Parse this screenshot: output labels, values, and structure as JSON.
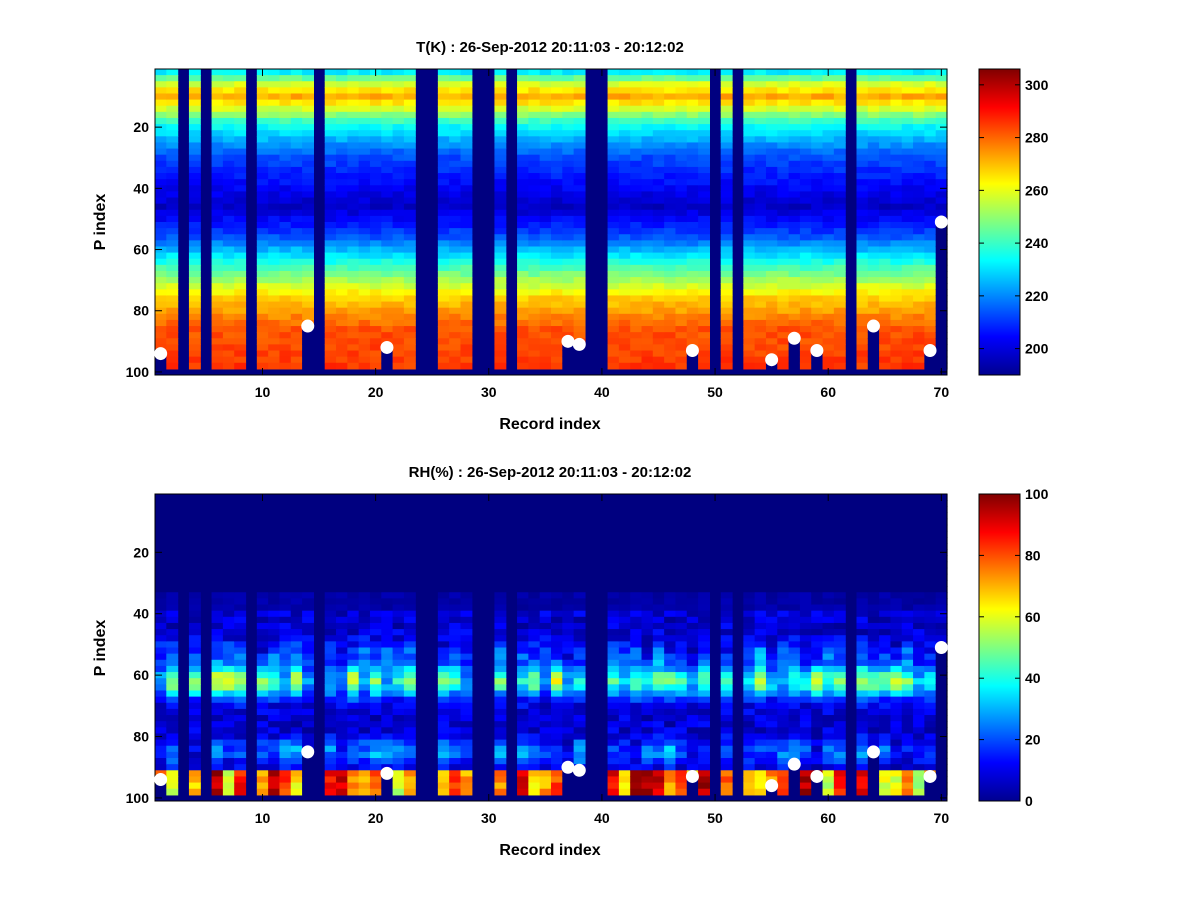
{
  "chart_data": [
    {
      "type": "heatmap",
      "title": "T(K) : 26-Sep-2012 20:11:03 - 20:12:02",
      "xlabel": "Record index",
      "ylabel": "P index",
      "xlim": [
        1,
        70
      ],
      "ylim": [
        101,
        1
      ],
      "x_ticks": [
        10,
        20,
        30,
        40,
        50,
        60,
        70
      ],
      "y_ticks": [
        20,
        40,
        60,
        80,
        100
      ],
      "colormap": "jet",
      "colorbar": {
        "min": 190,
        "max": 306,
        "ticks": [
          200,
          220,
          240,
          260,
          280,
          300
        ]
      },
      "missing_records": [
        3,
        5,
        9,
        15,
        24,
        25,
        29,
        30,
        32,
        39,
        40,
        50,
        52,
        62
      ],
      "surface_markers": [
        {
          "x": 1,
          "y": 94
        },
        {
          "x": 14,
          "y": 85
        },
        {
          "x": 21,
          "y": 92
        },
        {
          "x": 37,
          "y": 90
        },
        {
          "x": 38,
          "y": 91
        },
        {
          "x": 48,
          "y": 93
        },
        {
          "x": 55,
          "y": 96
        },
        {
          "x": 57,
          "y": 89
        },
        {
          "x": 59,
          "y": 93
        },
        {
          "x": 64,
          "y": 85
        },
        {
          "x": 69,
          "y": 93
        },
        {
          "x": 70,
          "y": 51
        }
      ]
    },
    {
      "type": "heatmap",
      "title": "RH(%) : 26-Sep-2012 20:11:03 - 20:12:02",
      "xlabel": "Record index",
      "ylabel": "P index",
      "xlim": [
        1,
        70
      ],
      "ylim": [
        101,
        1
      ],
      "x_ticks": [
        10,
        20,
        30,
        40,
        50,
        60,
        70
      ],
      "y_ticks": [
        20,
        40,
        60,
        80,
        100
      ],
      "colormap": "jet",
      "colorbar": {
        "min": 0,
        "max": 100,
        "ticks": [
          0,
          20,
          40,
          60,
          80,
          100
        ]
      },
      "missing_records": [
        3,
        5,
        9,
        15,
        24,
        25,
        29,
        30,
        32,
        39,
        40,
        50,
        52,
        62
      ],
      "surface_markers": [
        {
          "x": 1,
          "y": 94
        },
        {
          "x": 14,
          "y": 85
        },
        {
          "x": 21,
          "y": 92
        },
        {
          "x": 37,
          "y": 90
        },
        {
          "x": 38,
          "y": 91
        },
        {
          "x": 48,
          "y": 93
        },
        {
          "x": 55,
          "y": 96
        },
        {
          "x": 57,
          "y": 89
        },
        {
          "x": 59,
          "y": 93
        },
        {
          "x": 64,
          "y": 85
        },
        {
          "x": 69,
          "y": 93
        },
        {
          "x": 70,
          "y": 51
        }
      ]
    }
  ]
}
